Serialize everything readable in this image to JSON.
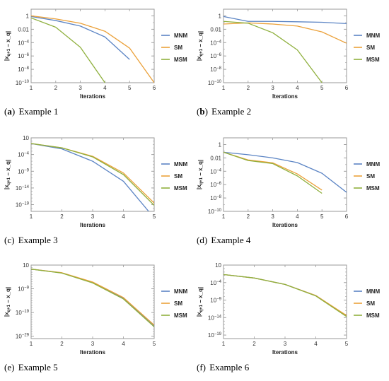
{
  "colors": {
    "MNM": "#5b84c4",
    "SM": "#eba13a",
    "MSM": "#8fb03e",
    "frame": "#9a9a9a"
  },
  "chart_data": [
    {
      "panel": "a",
      "caption_label": "(a)",
      "caption_text": "Example 1",
      "label_bold": true,
      "type": "line",
      "yscale": "log",
      "ylabel": "|x_{q+1} − x_q|",
      "xlabel": "Iterations",
      "xlim": [
        1,
        6
      ],
      "ylim": [
        1e-10,
        10
      ],
      "xticks": [
        "1",
        "2",
        "3",
        "4",
        "5",
        "6"
      ],
      "yticks": [
        {
          "v": 1,
          "t": "1"
        },
        {
          "v": 0.01,
          "t": "0.01"
        },
        {
          "v": 0.0001,
          "t": "10^-4"
        },
        {
          "v": 1e-06,
          "t": "10^-6"
        },
        {
          "v": 1e-08,
          "t": "10^-8"
        },
        {
          "v": 1e-10,
          "t": "10^-10"
        }
      ],
      "legend": [
        "MNM",
        "SM",
        "MSM"
      ],
      "legend_position": "right",
      "series": [
        {
          "name": "MNM",
          "x": [
            1,
            2,
            3,
            4,
            5
          ],
          "y": [
            0.8,
            0.2,
            0.03,
            0.0007,
            3e-07
          ]
        },
        {
          "name": "SM",
          "x": [
            1,
            2,
            3,
            4,
            5,
            6
          ],
          "y": [
            1,
            0.35,
            0.08,
            0.005,
            1.5e-05,
            1e-10
          ]
        },
        {
          "name": "MSM",
          "x": [
            1,
            2,
            3,
            4
          ],
          "y": [
            0.5,
            0.02,
            2e-05,
            1e-10
          ]
        }
      ]
    },
    {
      "panel": "b",
      "caption_label": "(b)",
      "caption_text": "Example 2",
      "label_bold": true,
      "type": "line",
      "yscale": "log",
      "ylabel": "|x_{q+1} − x_q|",
      "xlabel": "Iterations",
      "xlim": [
        1,
        6
      ],
      "ylim": [
        1e-10,
        10
      ],
      "xticks": [
        "1",
        "2",
        "3",
        "4",
        "5",
        "6"
      ],
      "yticks": [
        {
          "v": 1,
          "t": "1"
        },
        {
          "v": 0.01,
          "t": "0.01"
        },
        {
          "v": 0.0001,
          "t": "10^-4"
        },
        {
          "v": 1e-06,
          "t": "10^-6"
        },
        {
          "v": 1e-08,
          "t": "10^-8"
        },
        {
          "v": 1e-10,
          "t": "10^-10"
        }
      ],
      "legend": [
        "MNM",
        "SM",
        "MSM"
      ],
      "legend_position": "right",
      "series": [
        {
          "name": "MNM",
          "x": [
            1,
            2,
            3,
            4,
            5,
            6
          ],
          "y": [
            0.8,
            0.15,
            0.15,
            0.13,
            0.11,
            0.07
          ]
        },
        {
          "name": "SM",
          "x": [
            1,
            2,
            3,
            4,
            5,
            6
          ],
          "y": [
            0.06,
            0.09,
            0.06,
            0.03,
            0.004,
            8e-05
          ]
        },
        {
          "name": "MSM",
          "x": [
            1,
            2,
            3,
            4,
            5
          ],
          "y": [
            0.15,
            0.08,
            0.003,
            8e-06,
            1e-10
          ]
        }
      ]
    },
    {
      "panel": "c",
      "caption_label": "(c)",
      "caption_text": "Example 3",
      "label_bold": false,
      "type": "line",
      "yscale": "log",
      "ylabel": "|x_{q+1} − x_q|",
      "xlabel": "Iterations",
      "xlim": [
        1,
        5
      ],
      "ylim": [
        1e-21,
        10
      ],
      "xticks": [
        "1",
        "2",
        "3",
        "4",
        "5"
      ],
      "yticks": [
        {
          "v": 10,
          "t": "10"
        },
        {
          "v": 0.0001,
          "t": "10^-4"
        },
        {
          "v": 1e-09,
          "t": "10^-9"
        },
        {
          "v": 1e-14,
          "t": "10^-14"
        },
        {
          "v": 1e-19,
          "t": "10^-19"
        }
      ],
      "legend": [
        "MNM",
        "SM",
        "MSM"
      ],
      "legend_position": "right",
      "series": [
        {
          "name": "MNM",
          "x": [
            1,
            2,
            3,
            4,
            4.82
          ],
          "y": [
            0.2,
            0.005,
            1e-06,
            1e-12,
            1e-21
          ]
        },
        {
          "name": "SM",
          "x": [
            1,
            2,
            3,
            4,
            5
          ],
          "y": [
            0.2,
            0.01,
            3e-05,
            3e-10,
            3e-19
          ]
        },
        {
          "name": "MSM",
          "x": [
            1,
            2,
            3,
            4,
            5
          ],
          "y": [
            0.2,
            0.01,
            2e-05,
            1e-10,
            6e-20
          ]
        }
      ]
    },
    {
      "panel": "d",
      "caption_label": "(d)",
      "caption_text": "Example 4",
      "label_bold": false,
      "type": "line",
      "yscale": "log",
      "ylabel": "|x_{q+1} − x_q|",
      "xlabel": "Iterations",
      "xlim": [
        1,
        6
      ],
      "ylim": [
        1e-10,
        10
      ],
      "xticks": [
        "1",
        "2",
        "3",
        "4",
        "5",
        "6"
      ],
      "yticks": [
        {
          "v": 1,
          "t": "1"
        },
        {
          "v": 0.01,
          "t": "0.01"
        },
        {
          "v": 0.0001,
          "t": "10^-4"
        },
        {
          "v": 1e-06,
          "t": "10^-6"
        },
        {
          "v": 1e-08,
          "t": "10^-8"
        },
        {
          "v": 1e-10,
          "t": "10^-10"
        }
      ],
      "legend": [
        "MNM",
        "SM",
        "MSM"
      ],
      "legend_position": "right",
      "series": [
        {
          "name": "MNM",
          "x": [
            1,
            2,
            3,
            4,
            5,
            6
          ],
          "y": [
            0.07,
            0.03,
            0.01,
            0.002,
            5e-05,
            7e-08
          ]
        },
        {
          "name": "SM",
          "x": [
            1,
            2,
            3,
            4,
            5
          ],
          "y": [
            0.07,
            0.005,
            0.0018,
            4e-05,
            1.5e-07
          ]
        },
        {
          "name": "MSM",
          "x": [
            1,
            2,
            3,
            4,
            5
          ],
          "y": [
            0.07,
            0.004,
            0.0014,
            2e-05,
            5e-08
          ]
        }
      ]
    },
    {
      "panel": "e",
      "caption_label": "(e)",
      "caption_text": "Example 5",
      "label_bold": false,
      "type": "line",
      "yscale": "log",
      "ylabel": "|x_{q+1} − x_q|",
      "xlabel": "Iterations",
      "xlim": [
        1,
        5
      ],
      "ylim": [
        1e-30,
        10
      ],
      "xticks": [
        "1",
        "2",
        "3",
        "4",
        "5"
      ],
      "yticks": [
        {
          "v": 10,
          "t": "10"
        },
        {
          "v": 1e-09,
          "t": "10^-9"
        },
        {
          "v": 1e-19,
          "t": "10^-19"
        },
        {
          "v": 1e-29,
          "t": "10^-29"
        }
      ],
      "legend": [
        "MNM",
        "SM",
        "MSM"
      ],
      "legend_position": "right",
      "series": [
        {
          "name": "MNM",
          "x": [
            1,
            2,
            3,
            4,
            5
          ],
          "y": [
            0.2,
            0.005,
            5e-07,
            1e-13,
            3e-25
          ]
        },
        {
          "name": "SM",
          "x": [
            1,
            2,
            3,
            4,
            5
          ],
          "y": [
            0.2,
            0.006,
            7e-07,
            2e-13,
            5e-25
          ]
        },
        {
          "name": "MSM",
          "x": [
            1,
            2,
            3,
            4,
            5
          ],
          "y": [
            0.2,
            0.004,
            3e-07,
            5e-14,
            1e-25
          ]
        }
      ]
    },
    {
      "panel": "f",
      "caption_label": "(f)",
      "caption_text": "Example 6",
      "label_bold": false,
      "type": "line",
      "yscale": "log",
      "ylabel": "|x_{q+1} − x_q|",
      "xlabel": "Iterations",
      "xlim": [
        1,
        5
      ],
      "ylim": [
        1e-20,
        10
      ],
      "xticks": [
        "1",
        "2",
        "3",
        "4",
        "5"
      ],
      "yticks": [
        {
          "v": 10,
          "t": "10"
        },
        {
          "v": 0.0001,
          "t": "10^-4"
        },
        {
          "v": 1e-09,
          "t": "10^-9"
        },
        {
          "v": 1e-14,
          "t": "10^-14"
        },
        {
          "v": 1e-19,
          "t": "10^-19"
        }
      ],
      "legend": [
        "MNM",
        "SM",
        "MSM"
      ],
      "legend_position": "right",
      "series": [
        {
          "name": "MNM",
          "x": [
            1,
            2,
            3,
            4,
            5
          ],
          "y": [
            0.02,
            0.002,
            3e-05,
            2e-08,
            3e-14
          ]
        },
        {
          "name": "SM",
          "x": [
            1,
            2,
            3,
            4,
            5
          ],
          "y": [
            0.02,
            0.002,
            3e-05,
            2e-08,
            4e-14
          ]
        },
        {
          "name": "MSM",
          "x": [
            1,
            2,
            3,
            4,
            5
          ],
          "y": [
            0.02,
            0.002,
            3e-05,
            1.5e-08,
            2e-14
          ]
        }
      ]
    }
  ]
}
